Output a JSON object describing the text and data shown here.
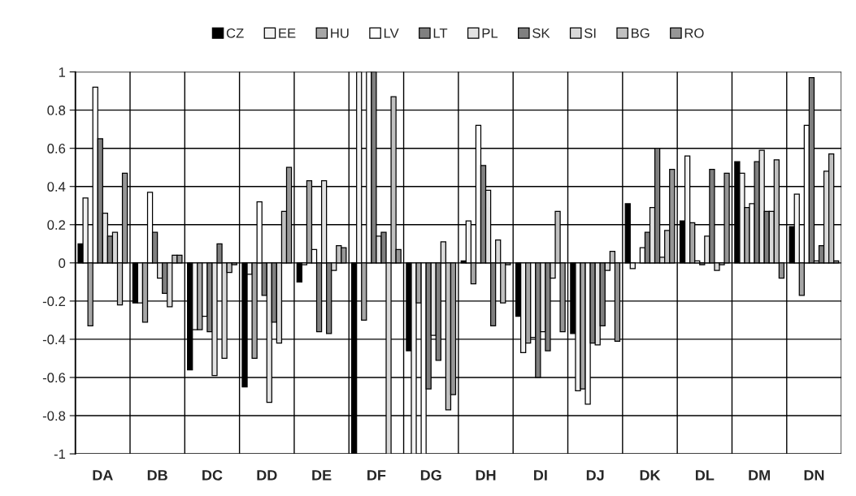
{
  "chart_data": {
    "type": "bar",
    "categories": [
      "DA",
      "DB",
      "DC",
      "DD",
      "DE",
      "DF",
      "DG",
      "DH",
      "DI",
      "DJ",
      "DK",
      "DL",
      "DM",
      "DN"
    ],
    "series": [
      {
        "name": "CZ",
        "color": "#000000",
        "values": [
          0.1,
          -0.21,
          -0.56,
          -0.65,
          -0.1,
          -1,
          -0.46,
          0.01,
          -0.28,
          -0.37,
          0.31,
          0.22,
          0.53,
          0.19
        ]
      },
      {
        "name": "EE",
        "color": "#f2f2f2",
        "values": [
          0.34,
          -0.21,
          -0.35,
          -0.06,
          -0.01,
          1,
          -1,
          0.22,
          -0.47,
          -0.67,
          -0.03,
          0.56,
          0.47,
          0.36
        ]
      },
      {
        "name": "HU",
        "color": "#a6a6a6",
        "values": [
          -0.33,
          -0.31,
          -0.35,
          -0.5,
          0.43,
          -0.3,
          -0.21,
          -0.11,
          -0.42,
          -0.66,
          null,
          0.21,
          0.29,
          -0.17
        ]
      },
      {
        "name": "LV",
        "color": "#ffffff",
        "values": [
          0.92,
          0.37,
          -0.28,
          0.32,
          0.07,
          1,
          -1,
          0.72,
          -0.39,
          -0.74,
          0.08,
          0.01,
          0.31,
          0.72
        ]
      },
      {
        "name": "LT",
        "color": "#808080",
        "values": [
          0.65,
          0.16,
          -0.36,
          -0.17,
          -0.36,
          1,
          -0.66,
          0.51,
          -0.6,
          -0.42,
          0.16,
          -0.01,
          0.53,
          0.97
        ]
      },
      {
        "name": "PL",
        "color": "#e3e3e3",
        "values": [
          0.26,
          -0.08,
          -0.59,
          -0.73,
          0.43,
          0.14,
          -0.38,
          0.38,
          -0.36,
          -0.43,
          0.29,
          0.14,
          0.59,
          0.01
        ]
      },
      {
        "name": "SK",
        "color": "#7f7f7f",
        "values": [
          0.14,
          -0.16,
          0.1,
          -0.31,
          -0.37,
          0.16,
          -0.51,
          -0.33,
          -0.46,
          -0.33,
          0.6,
          0.49,
          0.27,
          0.09
        ]
      },
      {
        "name": "SI",
        "color": "#d9d9d9",
        "values": [
          0.16,
          -0.23,
          -0.5,
          -0.42,
          -0.04,
          -1,
          0.11,
          0.12,
          -0.08,
          -0.04,
          0.03,
          -0.04,
          0.27,
          0.48
        ]
      },
      {
        "name": "BG",
        "color": "#c0c0c0",
        "values": [
          -0.22,
          0.04,
          -0.05,
          0.27,
          0.09,
          0.87,
          -0.77,
          -0.21,
          0.27,
          0.06,
          0.17,
          -0.01,
          0.54,
          0.57
        ]
      },
      {
        "name": "RO",
        "color": "#969696",
        "values": [
          0.47,
          0.04,
          -0.01,
          0.5,
          0.08,
          0.07,
          -0.69,
          -0.01,
          -0.36,
          -0.41,
          0.49,
          0.47,
          -0.08,
          0.01
        ]
      }
    ],
    "ylim": [
      -1,
      1
    ],
    "yticks": [
      {
        "value": -1,
        "label": "-1"
      },
      {
        "value": -0.8,
        "label": "-0.8"
      },
      {
        "value": -0.6,
        "label": "-0.6"
      },
      {
        "value": -0.4,
        "label": "-0.4"
      },
      {
        "value": -0.2,
        "label": "-0.2"
      },
      0,
      0.2,
      0.4,
      0.6,
      0.8,
      1
    ],
    "grid": true,
    "legend": "top"
  }
}
